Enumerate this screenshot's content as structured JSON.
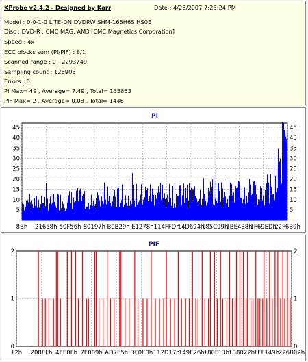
{
  "header": {
    "title": "KProbe v2.4.2 - Designed by Karr",
    "date": "Date : 4/28/2007 7:28:24 PM",
    "lines": [
      "Model : 0-0-1-0 LITE-ON DVDRW SHM-165H6S HS0E",
      "Disc : DVD-R , CMC MAG. AM3 [CMC Magnetics Corporation]",
      "Speed : 4x",
      "ECC blocks sum (PI/PIF) : 8/1",
      "Scanned range : 0 - 2293749",
      "Sampling count : 126903",
      "Errors : 0",
      "PI Max= 49 , Average= 7.49 , Total= 135853",
      "PIF Max= 2 , Average= 0.08 , Total= 1446"
    ]
  },
  "colors": {
    "pi": "#0000ff",
    "pif": "#ff0000",
    "title": "#1a1aa0",
    "panel_bg": "#ffffff",
    "info_bg": "#ffffe6"
  },
  "chart_data": [
    {
      "type": "bar",
      "title": "PI",
      "xlabel": "",
      "ylabel": "",
      "ylim": [
        0,
        47
      ],
      "yticks": [
        5,
        10,
        15,
        20,
        25,
        30,
        35,
        40,
        45
      ],
      "xtick_labels": [
        "8Bh",
        "21658h",
        "50F56h",
        "80197h",
        "B0B29h",
        "E1278h",
        "114FFDh",
        "14D694h",
        "185C99h",
        "1BE438h",
        "1F69EDh",
        "22F6B9h"
      ],
      "grid": true,
      "series": [
        {
          "color": "#0000ff",
          "profile": [
            [
              0.0,
              9
            ],
            [
              0.05,
              9
            ],
            [
              0.1,
              10
            ],
            [
              0.15,
              10
            ],
            [
              0.2,
              11
            ],
            [
              0.25,
              11
            ],
            [
              0.3,
              12
            ],
            [
              0.35,
              12
            ],
            [
              0.4,
              13
            ],
            [
              0.45,
              13
            ],
            [
              0.5,
              14
            ],
            [
              0.55,
              13
            ],
            [
              0.6,
              13
            ],
            [
              0.65,
              13
            ],
            [
              0.7,
              14
            ],
            [
              0.75,
              15
            ],
            [
              0.8,
              14
            ],
            [
              0.85,
              14
            ],
            [
              0.9,
              14
            ],
            [
              0.94,
              17
            ],
            [
              0.97,
              27
            ],
            [
              1.0,
              42
            ]
          ],
          "max": 49
        }
      ]
    },
    {
      "type": "bar",
      "title": "PIF",
      "xlabel": "",
      "ylabel": "",
      "ylim": [
        0,
        2
      ],
      "yticks": [
        0,
        1,
        2
      ],
      "xtick_labels": [
        "12h",
        "208EFh",
        "4EE0Fh",
        "7E009h",
        "AD7E5h",
        "DF0E0h",
        "112D17h",
        "149E26h",
        "180F13h",
        "1B8022h",
        "1EF149h",
        "226B02h"
      ],
      "grid": true,
      "series": [
        {
          "color": "#ff0000",
          "spikes": [
            [
              0.08,
              2
            ],
            [
              0.095,
              1
            ],
            [
              0.105,
              1
            ],
            [
              0.118,
              1
            ],
            [
              0.135,
              1
            ],
            [
              0.145,
              2
            ],
            [
              0.15,
              2
            ],
            [
              0.16,
              1
            ],
            [
              0.185,
              2
            ],
            [
              0.2,
              2
            ],
            [
              0.215,
              2
            ],
            [
              0.225,
              1
            ],
            [
              0.24,
              2
            ],
            [
              0.255,
              1
            ],
            [
              0.262,
              1
            ],
            [
              0.285,
              2
            ],
            [
              0.29,
              2
            ],
            [
              0.3,
              1
            ],
            [
              0.315,
              1
            ],
            [
              0.33,
              2
            ],
            [
              0.342,
              1
            ],
            [
              0.355,
              1
            ],
            [
              0.375,
              2
            ],
            [
              0.38,
              2
            ],
            [
              0.395,
              1
            ],
            [
              0.41,
              1
            ],
            [
              0.43,
              2
            ],
            [
              0.442,
              1
            ],
            [
              0.46,
              1
            ],
            [
              0.475,
              1
            ],
            [
              0.49,
              2
            ],
            [
              0.505,
              1
            ],
            [
              0.52,
              1
            ],
            [
              0.535,
              1
            ],
            [
              0.545,
              2
            ],
            [
              0.56,
              1
            ],
            [
              0.575,
              1
            ],
            [
              0.588,
              2
            ],
            [
              0.6,
              1
            ],
            [
              0.615,
              1
            ],
            [
              0.628,
              1
            ],
            [
              0.64,
              2
            ],
            [
              0.652,
              1
            ],
            [
              0.66,
              1
            ],
            [
              0.675,
              2
            ],
            [
              0.685,
              1
            ],
            [
              0.698,
              1
            ],
            [
              0.705,
              2
            ],
            [
              0.72,
              2
            ],
            [
              0.73,
              1
            ],
            [
              0.742,
              2
            ],
            [
              0.75,
              1
            ],
            [
              0.765,
              1
            ],
            [
              0.775,
              2
            ],
            [
              0.785,
              1
            ],
            [
              0.795,
              1
            ],
            [
              0.8,
              2
            ],
            [
              0.812,
              2
            ],
            [
              0.825,
              2
            ],
            [
              0.835,
              1
            ],
            [
              0.84,
              2
            ],
            [
              0.852,
              1
            ],
            [
              0.86,
              1
            ],
            [
              0.87,
              2
            ],
            [
              0.878,
              1
            ],
            [
              0.885,
              1
            ],
            [
              0.895,
              1
            ],
            [
              0.9,
              2
            ],
            [
              0.91,
              1
            ],
            [
              0.92,
              2
            ],
            [
              0.93,
              1
            ],
            [
              0.94,
              2
            ],
            [
              0.95,
              2
            ],
            [
              0.96,
              1
            ],
            [
              0.968,
              2
            ],
            [
              0.975,
              1
            ],
            [
              0.985,
              2
            ],
            [
              0.995,
              1
            ]
          ]
        }
      ]
    }
  ]
}
